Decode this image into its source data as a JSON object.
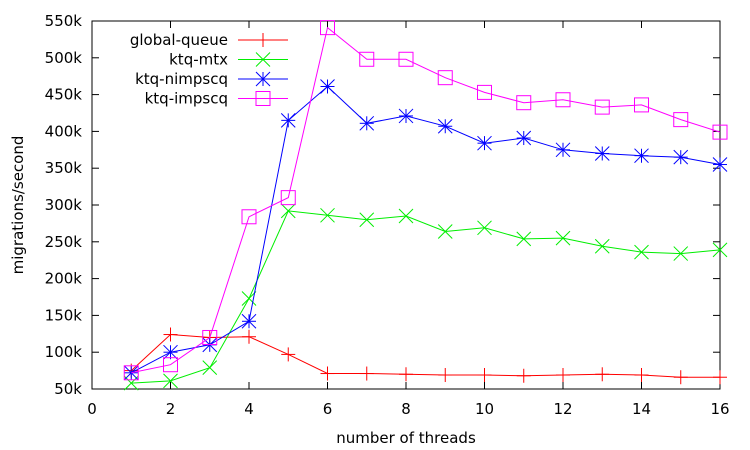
{
  "chart_data": {
    "type": "line",
    "xlabel": "number of threads",
    "ylabel": "migrations/second",
    "xlim": [
      0,
      16
    ],
    "ylim": [
      50000,
      550000
    ],
    "x_ticks": [
      0,
      2,
      4,
      6,
      8,
      10,
      12,
      14,
      16
    ],
    "y_ticks": [
      50000,
      100000,
      150000,
      200000,
      250000,
      300000,
      350000,
      400000,
      450000,
      500000,
      550000
    ],
    "x_tick_labels": [
      "0",
      "2",
      "4",
      "6",
      "8",
      "10",
      "12",
      "14",
      "16"
    ],
    "y_tick_labels": [
      "50k",
      "100k",
      "150k",
      "200k",
      "250k",
      "300k",
      "350k",
      "400k",
      "450k",
      "500k",
      "550k"
    ],
    "grid": false,
    "legend_position": "top-left",
    "x": [
      1,
      2,
      3,
      4,
      5,
      6,
      7,
      8,
      9,
      10,
      11,
      12,
      13,
      14,
      15,
      16
    ],
    "series": [
      {
        "name": "global-queue",
        "color": "#ff0000",
        "marker": "plus",
        "values": [
          75000,
          124000,
          120000,
          121000,
          97000,
          71000,
          71000,
          70000,
          69000,
          69000,
          68000,
          69000,
          70000,
          69000,
          66000,
          66000
        ]
      },
      {
        "name": "ktq-mtx",
        "color": "#00ee00",
        "marker": "cross",
        "values": [
          58000,
          61000,
          79000,
          173000,
          292000,
          286000,
          280000,
          285000,
          264000,
          269000,
          254000,
          255000,
          244000,
          236000,
          234000,
          239000
        ]
      },
      {
        "name": "ktq-nimpscq",
        "color": "#0000ff",
        "marker": "star",
        "values": [
          72000,
          100000,
          110000,
          142000,
          415000,
          461000,
          411000,
          421000,
          407000,
          384000,
          391000,
          375000,
          370000,
          367000,
          365000,
          355000
        ]
      },
      {
        "name": "ktq-impscq",
        "color": "#ff00ff",
        "marker": "square",
        "values": [
          72000,
          83000,
          120000,
          284000,
          310000,
          541000,
          498000,
          498000,
          473000,
          453000,
          439000,
          443000,
          433000,
          436000,
          416000,
          399000
        ]
      }
    ]
  }
}
